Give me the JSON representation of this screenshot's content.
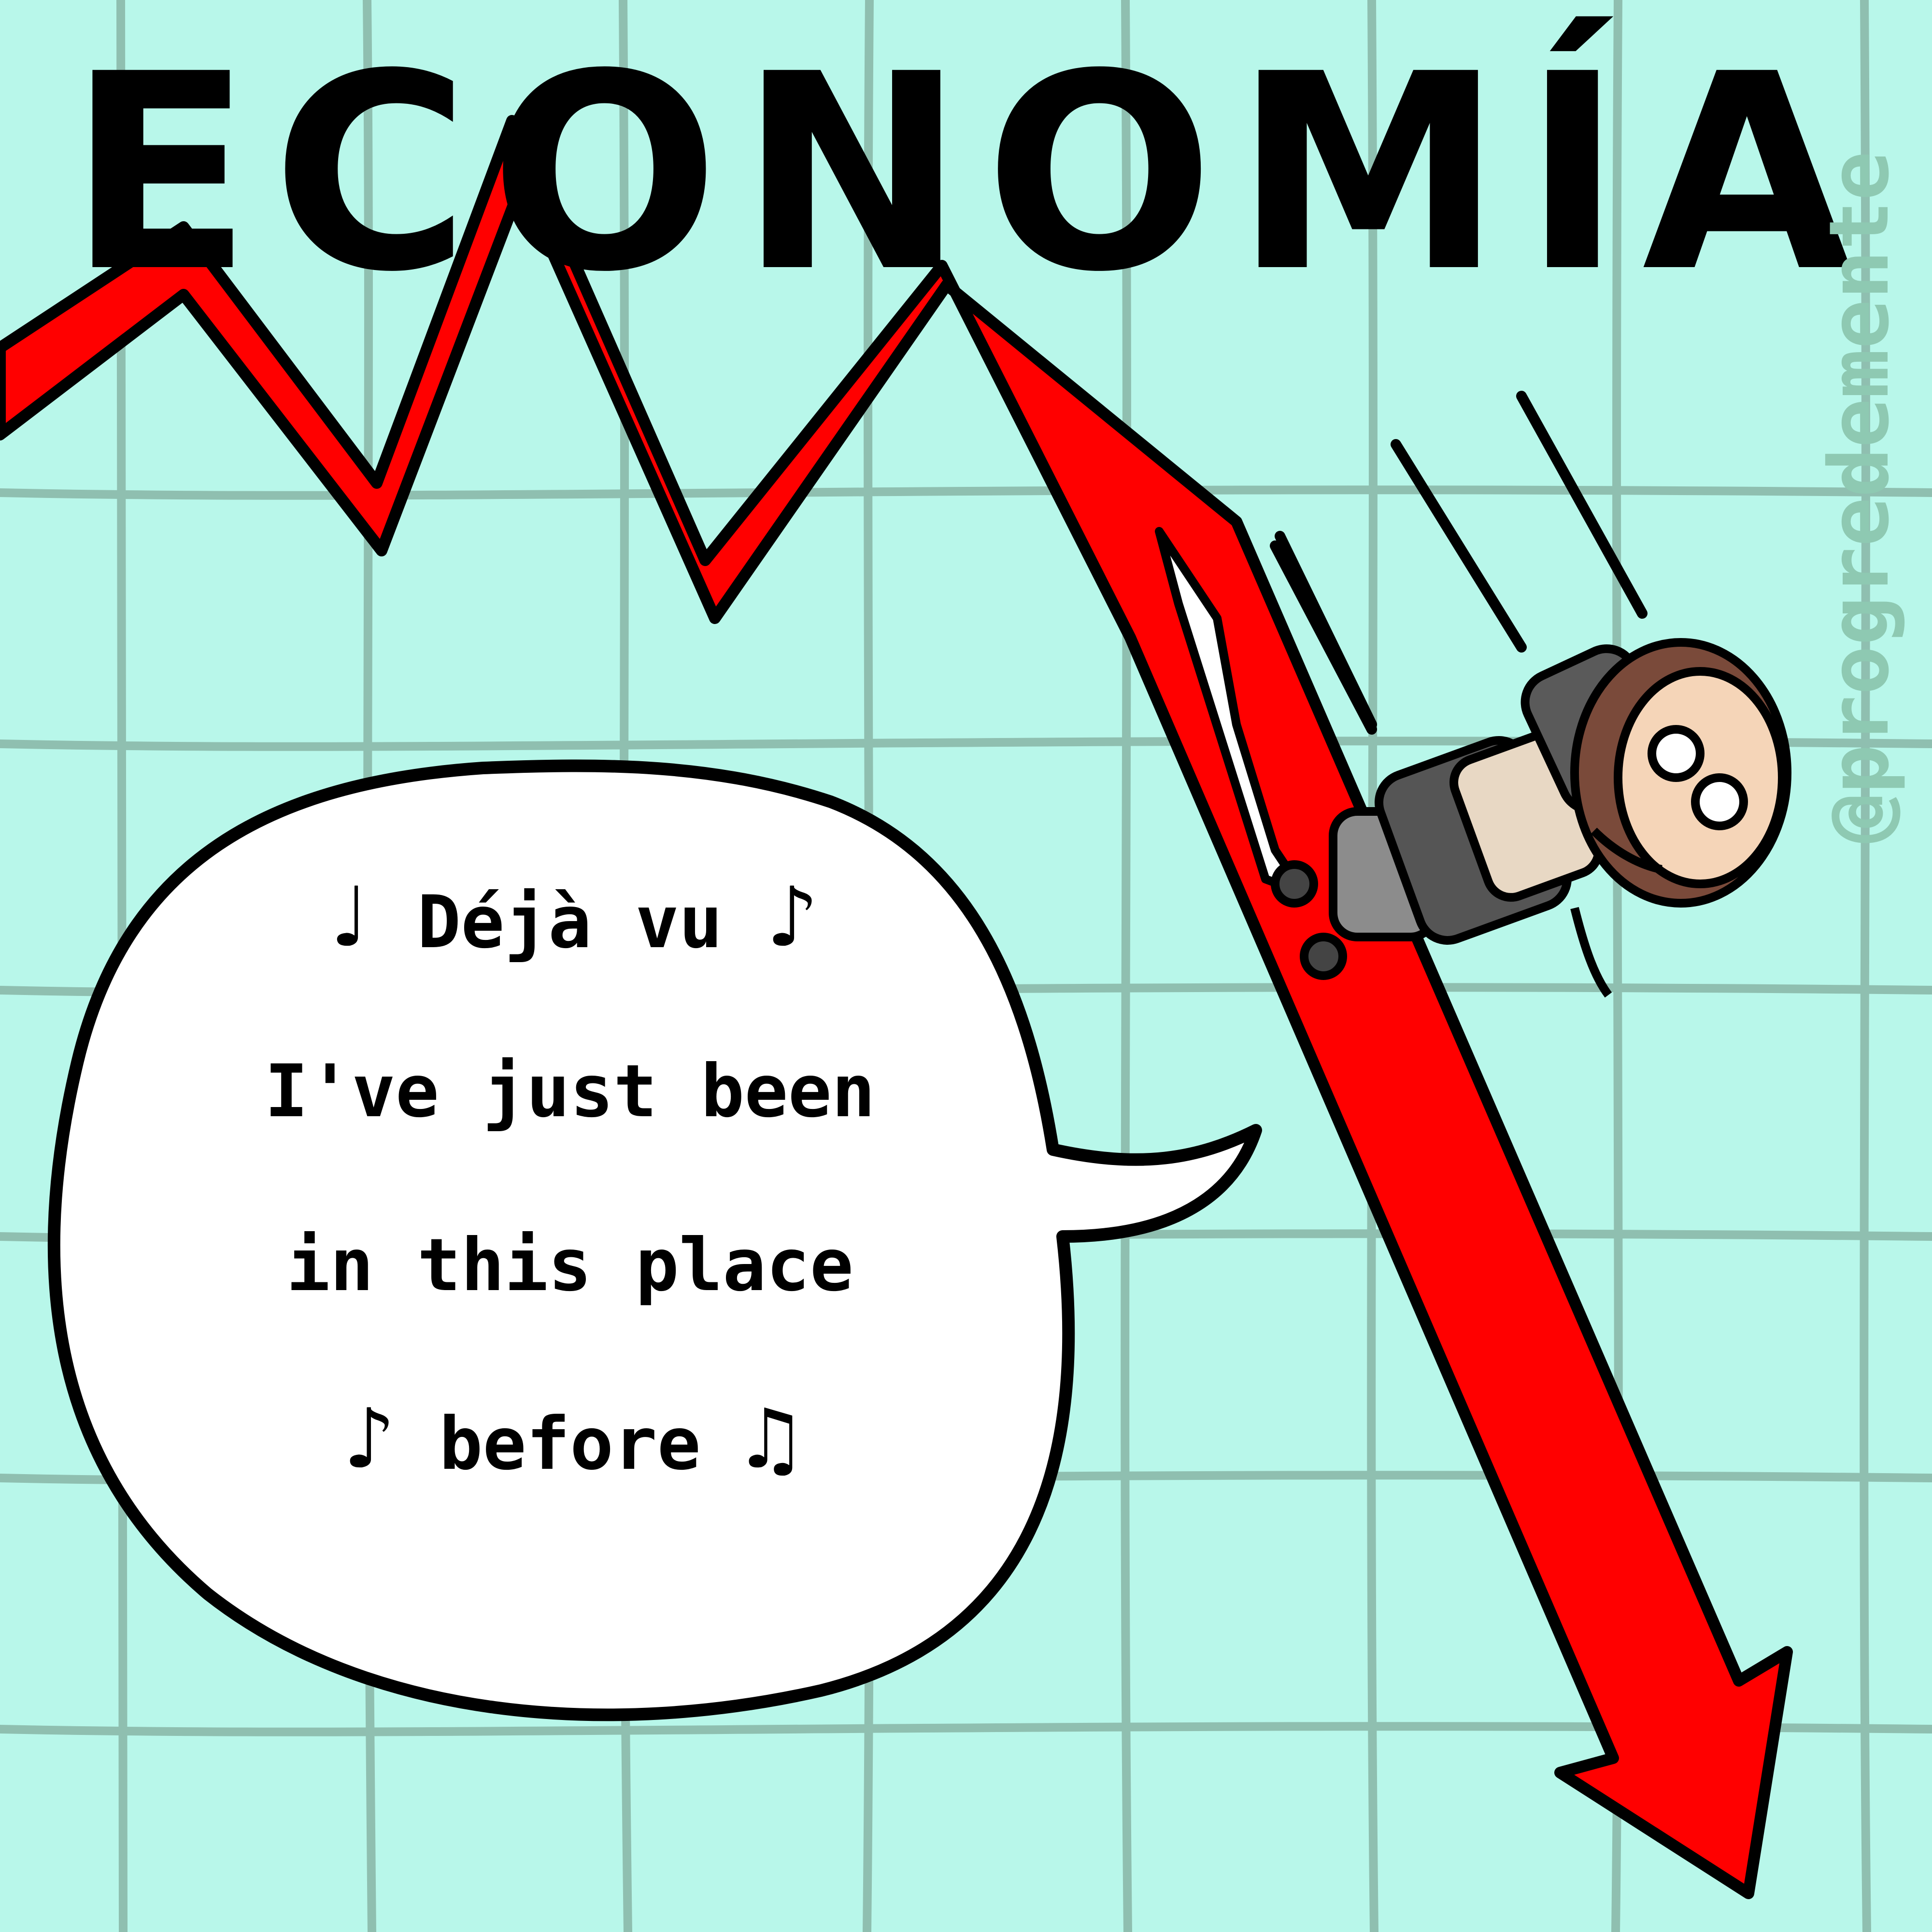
{
  "title": "ECONOMÍA",
  "watermark": "@progredemente",
  "speech": {
    "line1": "Déjà vu",
    "line2": "I've just been",
    "line3": "in this place",
    "line4": "before",
    "note_single": "♪",
    "note_quarter": "♩",
    "note_double": "♫"
  },
  "colors": {
    "background": "#b8f7ea",
    "grid": "#8fbfb0",
    "trend_arrow": "#ff0000",
    "bubble": "#ffffff",
    "outline": "#000000",
    "watermark": "#8ec9b2"
  },
  "icons": [
    "trend-arrow-icon",
    "falling-person-icon",
    "music-note-icon",
    "speech-bubble-icon"
  ]
}
